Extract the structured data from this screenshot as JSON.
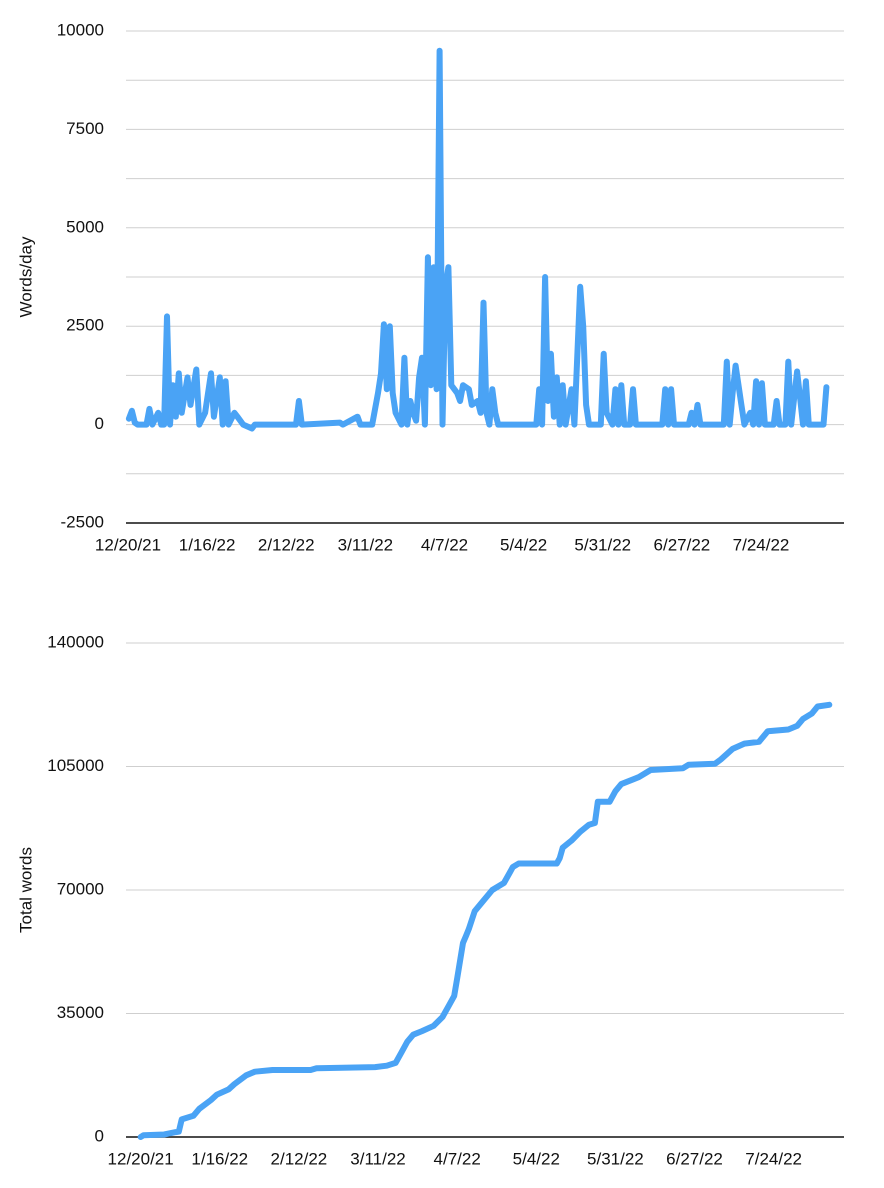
{
  "chart_data": [
    {
      "type": "line",
      "ylabel": "Words/day",
      "color": "#4aa3f5",
      "grid": true,
      "xlim": [
        "12/20/21",
        "8/22/22"
      ],
      "xticks": [
        "12/20/21",
        "1/16/22",
        "2/12/22",
        "3/11/22",
        "4/7/22",
        "5/4/22",
        "5/31/22",
        "6/27/22",
        "7/24/22"
      ],
      "ylim": [
        -2500,
        10000
      ],
      "yticks": [
        -2500,
        0,
        2500,
        5000,
        7500,
        10000
      ],
      "minor_grid": [
        -1250,
        1250,
        3750,
        6250,
        8750
      ],
      "x": [
        "12/21/21",
        "12/22/21",
        "12/23/21",
        "12/24/21",
        "12/27/21",
        "12/28/21",
        "12/29/21",
        "12/31/21",
        "1/1/22",
        "1/2/22",
        "1/3/22",
        "1/4/22",
        "1/5/22",
        "1/6/22",
        "1/7/22",
        "1/8/22",
        "1/10/22",
        "1/11/22",
        "1/13/22",
        "1/14/22",
        "1/16/22",
        "1/18/22",
        "1/19/22",
        "1/21/22",
        "1/22/22",
        "1/23/22",
        "1/24/22",
        "1/26/22",
        "1/27/22",
        "1/29/22",
        "2/1/22",
        "2/2/22",
        "2/16/22",
        "2/17/22",
        "2/18/22",
        "3/3/22",
        "3/4/22",
        "3/9/22",
        "3/10/22",
        "3/14/22",
        "3/16/22",
        "3/17/22",
        "3/18/22",
        "3/19/22",
        "3/20/22",
        "3/21/22",
        "3/22/22",
        "3/24/22",
        "3/25/22",
        "3/26/22",
        "3/27/22",
        "3/28/22",
        "3/29/22",
        "3/30/22",
        "3/31/22",
        "4/1/22",
        "4/2/22",
        "4/3/22",
        "4/4/22",
        "4/5/22",
        "4/6/22",
        "4/7/22",
        "4/8/22",
        "4/9/22",
        "4/10/22",
        "4/12/22",
        "4/13/22",
        "4/14/22",
        "4/16/22",
        "4/17/22",
        "4/19/22",
        "4/20/22",
        "4/21/22",
        "4/22/22",
        "4/23/22",
        "4/24/22",
        "4/25/22",
        "4/26/22",
        "5/9/22",
        "5/10/22",
        "5/11/22",
        "5/12/22",
        "5/13/22",
        "5/14/22",
        "5/15/22",
        "5/16/22",
        "5/17/22",
        "5/18/22",
        "5/19/22",
        "5/21/22",
        "5/22/22",
        "5/24/22",
        "5/25/22",
        "5/26/22",
        "5/27/22",
        "5/31/22",
        "6/1/22",
        "6/2/22",
        "6/4/22",
        "6/5/22",
        "6/6/22",
        "6/7/22",
        "6/8/22",
        "6/10/22",
        "6/11/22",
        "6/12/22",
        "6/21/22",
        "6/22/22",
        "6/23/22",
        "6/24/22",
        "6/25/22",
        "6/30/22",
        "7/1/22",
        "7/2/22",
        "7/3/22",
        "7/4/22",
        "7/12/22",
        "7/13/22",
        "7/14/22",
        "7/15/22",
        "7/16/22",
        "7/17/22",
        "7/18/22",
        "7/19/22",
        "7/21/22",
        "7/22/22",
        "7/23/22",
        "7/24/22",
        "7/25/22",
        "7/26/22",
        "7/29/22",
        "7/30/22",
        "7/31/22",
        "8/2/22",
        "8/3/22",
        "8/4/22",
        "8/6/22",
        "8/7/22",
        "8/8/22",
        "8/9/22",
        "8/10/22",
        "8/15/22",
        "8/16/22"
      ],
      "values": [
        150,
        350,
        50,
        0,
        0,
        400,
        0,
        300,
        0,
        0,
        2750,
        0,
        1000,
        200,
        1300,
        300,
        1200,
        500,
        1400,
        0,
        300,
        1300,
        200,
        1200,
        0,
        1100,
        0,
        300,
        200,
        0,
        -100,
        0,
        0,
        600,
        0,
        50,
        0,
        200,
        0,
        0,
        800,
        1300,
        2550,
        900,
        2500,
        800,
        300,
        0,
        1700,
        0,
        600,
        300,
        100,
        1200,
        1700,
        0,
        4250,
        1000,
        4000,
        900,
        9500,
        0,
        3500,
        4000,
        1000,
        800,
        600,
        1000,
        900,
        500,
        600,
        300,
        3100,
        300,
        0,
        900,
        300,
        0,
        0,
        900,
        0,
        3750,
        600,
        1800,
        200,
        1200,
        0,
        1000,
        0,
        900,
        0,
        3500,
        2500,
        500,
        0,
        0,
        1800,
        300,
        0,
        900,
        0,
        1000,
        0,
        0,
        900,
        0,
        0,
        900,
        0,
        900,
        0,
        0,
        300,
        0,
        500,
        0,
        0,
        1600,
        0,
        800,
        1500,
        1000,
        500,
        0,
        300,
        0,
        1100,
        0,
        1050,
        0,
        0,
        600,
        0,
        0,
        1600,
        0,
        1350,
        700,
        0,
        1100,
        0,
        0,
        950
      ]
    },
    {
      "type": "line",
      "ylabel": "Total words",
      "color": "#4aa3f5",
      "grid": true,
      "xlim": [
        "12/15/21",
        "8/17/22"
      ],
      "xticks": [
        "12/20/21",
        "1/16/22",
        "2/12/22",
        "3/11/22",
        "4/7/22",
        "5/4/22",
        "5/31/22",
        "6/27/22",
        "7/24/22"
      ],
      "ylim": [
        0,
        140000
      ],
      "yticks": [
        0,
        35000,
        70000,
        105000,
        140000
      ],
      "x": [
        "12/20/21",
        "12/21/21",
        "12/28/21",
        "1/1/22",
        "1/2/22",
        "1/3/22",
        "1/7/22",
        "1/9/22",
        "1/13/22",
        "1/15/22",
        "1/19/22",
        "1/21/22",
        "1/25/22",
        "1/28/22",
        "2/3/22",
        "2/16/22",
        "2/18/22",
        "3/10/22",
        "3/14/22",
        "3/17/22",
        "3/19/22",
        "3/21/22",
        "3/23/22",
        "3/26/22",
        "3/30/22",
        "4/2/22",
        "4/4/22",
        "4/6/22",
        "4/7/22",
        "4/9/22",
        "4/10/22",
        "4/11/22",
        "4/13/22",
        "4/16/22",
        "4/19/22",
        "4/23/22",
        "4/25/22",
        "4/26/22",
        "4/28/22",
        "5/11/22",
        "5/12/22",
        "5/13/22",
        "5/16/22",
        "5/19/22",
        "5/22/22",
        "5/24/22",
        "5/25/22",
        "5/29/22",
        "5/31/22",
        "6/2/22",
        "6/8/22",
        "6/12/22",
        "6/23/22",
        "6/25/22",
        "7/4/22",
        "7/6/22",
        "7/10/22",
        "7/14/22",
        "7/19/22",
        "7/22/22",
        "7/29/22",
        "8/1/22",
        "8/3/22",
        "8/6/22",
        "8/8/22",
        "8/12/22"
      ],
      "values": [
        0,
        500,
        700,
        1400,
        1500,
        5000,
        6000,
        8000,
        10500,
        12000,
        13500,
        15000,
        17500,
        18500,
        19000,
        19000,
        19500,
        19800,
        20200,
        21000,
        24000,
        27000,
        29000,
        30000,
        31500,
        34000,
        37000,
        40000,
        45000,
        55000,
        57000,
        59000,
        64000,
        67000,
        70000,
        72000,
        75000,
        76500,
        77500,
        77500,
        79000,
        82000,
        84000,
        86500,
        88500,
        89000,
        95000,
        95000,
        98000,
        100000,
        102000,
        104000,
        104500,
        105500,
        105800,
        107000,
        110000,
        111500,
        112000,
        115000,
        115500,
        116500,
        118500,
        120000,
        122000,
        122500
      ]
    }
  ]
}
